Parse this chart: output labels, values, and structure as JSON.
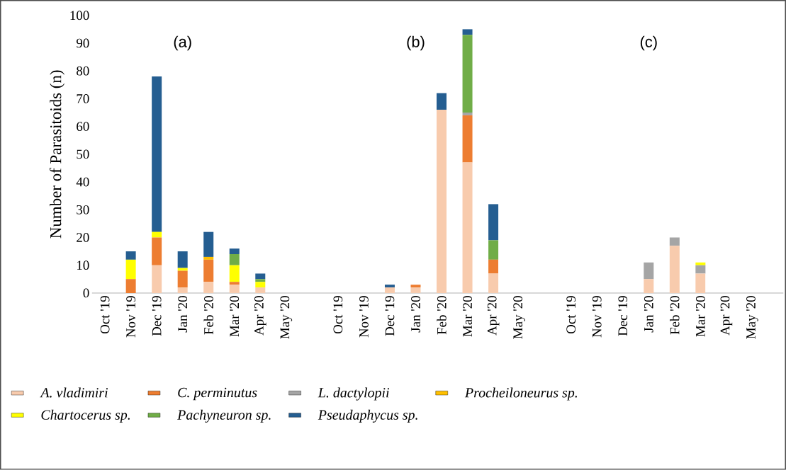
{
  "chart_data": {
    "type": "bar",
    "stacked": true,
    "ylabel": "Number of Parasitoids (n)",
    "categories": [
      "Oct '19",
      "Nov '19",
      "Dec '19",
      "Jan '20",
      "Feb '20",
      "Mar '20",
      "Apr '20",
      "May '20",
      null,
      "Oct '19",
      "Nov '19",
      "Dec '19",
      "Jan '20",
      "Feb '20",
      "Mar '20",
      "Apr '20",
      "May '20",
      null,
      "Oct '19",
      "Nov '19",
      "Dec '19",
      "Jan '20",
      "Feb '20",
      "Mar '20",
      "Apr '20",
      "May '20"
    ],
    "series": [
      {
        "name": "A. vladimiri",
        "color": "#f8cbad",
        "values": [
          0,
          0,
          10,
          2,
          4,
          3,
          2,
          0,
          null,
          0,
          0,
          2,
          2,
          66,
          47,
          7,
          0,
          null,
          0,
          0,
          0,
          5,
          17,
          7,
          0,
          0
        ]
      },
      {
        "name": "C. perminutus",
        "color": "#ed7d31",
        "values": [
          0,
          5,
          10,
          6,
          8,
          1,
          0,
          0,
          null,
          0,
          0,
          0,
          1,
          0,
          17,
          5,
          0,
          null,
          0,
          0,
          0,
          0,
          0,
          0,
          0,
          0
        ]
      },
      {
        "name": "L. dactylopii",
        "color": "#a5a5a5",
        "values": [
          0,
          0,
          0,
          0,
          0,
          0,
          0,
          0,
          null,
          0,
          0,
          0,
          0,
          0,
          1,
          0,
          0,
          null,
          0,
          0,
          0,
          6,
          3,
          3,
          0,
          0
        ]
      },
      {
        "name": "Procheiloneurus sp.",
        "color": "#ffc000",
        "values": [
          0,
          0,
          0,
          0,
          1,
          0,
          0,
          0,
          null,
          0,
          0,
          0,
          0,
          0,
          0,
          0,
          0,
          null,
          0,
          0,
          0,
          0,
          0,
          0,
          0,
          0
        ]
      },
      {
        "name": "Chartocerus sp.",
        "color": "#ffff00",
        "values": [
          0,
          7,
          2,
          1,
          0,
          6,
          2,
          0,
          null,
          0,
          0,
          0,
          0,
          0,
          0,
          0,
          0,
          null,
          0,
          0,
          0,
          0,
          0,
          1,
          0,
          0
        ]
      },
      {
        "name": "Pachyneuron sp.",
        "color": "#70ad47",
        "values": [
          0,
          0,
          0,
          0,
          0,
          4,
          1,
          0,
          null,
          0,
          0,
          0,
          0,
          0,
          28,
          7,
          0,
          null,
          0,
          0,
          0,
          0,
          0,
          0,
          0,
          0
        ]
      },
      {
        "name": "Pseudaphycus sp.",
        "color": "#255e91",
        "values": [
          0,
          3,
          56,
          6,
          9,
          2,
          2,
          0,
          null,
          0,
          0,
          1,
          0,
          6,
          2,
          13,
          0,
          null,
          0,
          0,
          0,
          0,
          0,
          0,
          0,
          0
        ]
      }
    ],
    "ylim": [
      0,
      100
    ],
    "yticks": [
      0,
      10,
      20,
      30,
      40,
      50,
      60,
      70,
      80,
      90,
      100
    ],
    "grid": false,
    "legend": "bottom",
    "annotations": [
      "(a)",
      "(b)",
      "(c)"
    ]
  }
}
